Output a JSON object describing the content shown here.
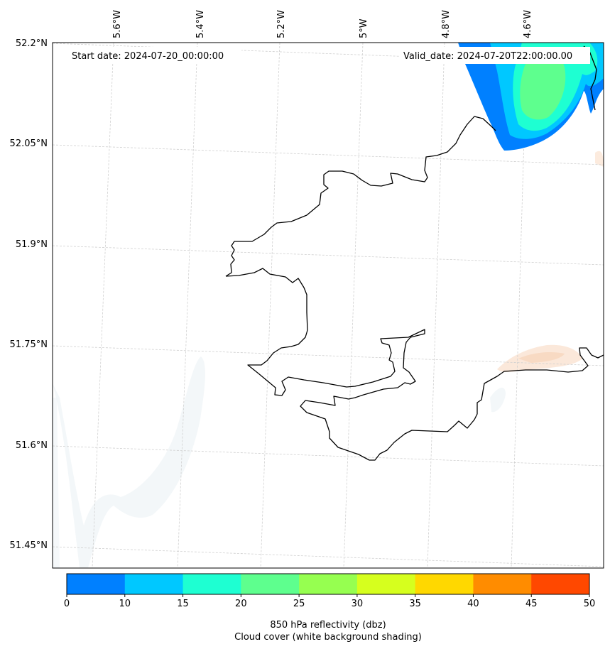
{
  "map": {
    "start_date_label": "Start date: 2024-07-20_00:00:00",
    "valid_date_label": "Valid_date: 2024-07-20T22:00:00.00",
    "lat_labels": [
      "52.2°N",
      "52.05°N",
      "51.9°N",
      "51.75°N",
      "51.6°N",
      "51.45°N"
    ],
    "lon_labels": [
      "5.6°W",
      "5.4°W",
      "5.2°W",
      "5°W",
      "4.8°W",
      "4.6°W"
    ]
  },
  "colorbar": {
    "ticks": [
      "0",
      "10",
      "15",
      "20",
      "25",
      "30",
      "35",
      "40",
      "45",
      "50"
    ],
    "colors": [
      "#0080ff",
      "#00c8ff",
      "#1effd2",
      "#5eff8e",
      "#96ff50",
      "#d6ff1e",
      "#ffd800",
      "#ff8c00",
      "#ff4800"
    ],
    "label_line1": "850 hPa reflectivity (dbz)",
    "label_line2": "Cloud cover (white background shading)"
  },
  "colors": {
    "coastline": "#000000",
    "grid": "#d0d0d0",
    "cloud_shading": "#eef4f7",
    "precip_light": "#fbe6d6"
  }
}
